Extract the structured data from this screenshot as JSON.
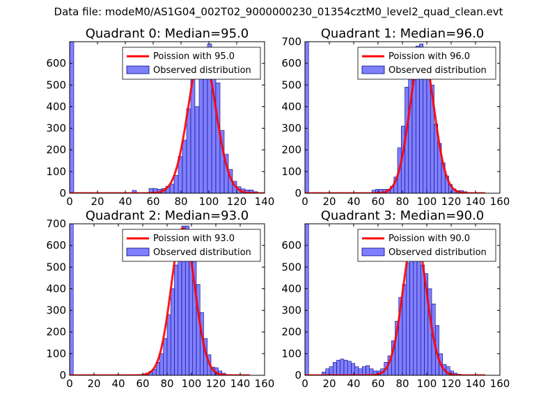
{
  "figure_title": "Data file: modeM0/AS1G04_002T02_9000000230_01354cztM0_level2_quad_clean.evt",
  "colors": {
    "histogram_fill": "#8080ff",
    "histogram_edge": "#000080",
    "poisson_line": "#ff0000"
  },
  "chart_data": [
    {
      "type": "bar",
      "title": "Quadrant 0: Median=95.0",
      "xlim": [
        0,
        140
      ],
      "ylim": [
        0,
        700
      ],
      "xticks": [
        "0",
        "20",
        "40",
        "60",
        "80",
        "100",
        "120",
        "140"
      ],
      "yticks": [
        "0",
        "100",
        "200",
        "300",
        "400",
        "500",
        "600"
      ],
      "bin_width": 3.0,
      "bins": [
        [
          0,
          700
        ],
        [
          45,
          13
        ],
        [
          57,
          22
        ],
        [
          60,
          22
        ],
        [
          63,
          18
        ],
        [
          66,
          22
        ],
        [
          69,
          32
        ],
        [
          72,
          42
        ],
        [
          75,
          82
        ],
        [
          78,
          170
        ],
        [
          81,
          245
        ],
        [
          84,
          390
        ],
        [
          87,
          560
        ],
        [
          90,
          400
        ],
        [
          93,
          640
        ],
        [
          96,
          550
        ],
        [
          99,
          690
        ],
        [
          102,
          610
        ],
        [
          105,
          510
        ],
        [
          108,
          290
        ],
        [
          111,
          180
        ],
        [
          114,
          110
        ],
        [
          117,
          55
        ],
        [
          120,
          30
        ],
        [
          123,
          20
        ],
        [
          126,
          15
        ],
        [
          129,
          15
        ],
        [
          132,
          7
        ]
      ],
      "poisson_mean": 95,
      "poisson_peak": 660,
      "legend": [
        "Poission with 95.0",
        "Observed distribution"
      ],
      "legend_position": "upper-right"
    },
    {
      "type": "bar",
      "title": "Quadrant 1: Median=96.0",
      "xlim": [
        0,
        160
      ],
      "ylim": [
        0,
        700
      ],
      "xticks": [
        "0",
        "20",
        "40",
        "60",
        "80",
        "100",
        "120",
        "140",
        "160"
      ],
      "yticks": [
        "0",
        "100",
        "200",
        "300",
        "400",
        "500",
        "600",
        "700"
      ],
      "bin_width": 3.0,
      "bins": [
        [
          0,
          700
        ],
        [
          55,
          14
        ],
        [
          58,
          18
        ],
        [
          61,
          18
        ],
        [
          64,
          18
        ],
        [
          67,
          18
        ],
        [
          70,
          32
        ],
        [
          73,
          75
        ],
        [
          76,
          210
        ],
        [
          79,
          310
        ],
        [
          82,
          490
        ],
        [
          85,
          550
        ],
        [
          88,
          640
        ],
        [
          91,
          680
        ],
        [
          94,
          690
        ],
        [
          97,
          650
        ],
        [
          100,
          600
        ],
        [
          103,
          500
        ],
        [
          106,
          320
        ],
        [
          109,
          230
        ],
        [
          112,
          140
        ],
        [
          115,
          80
        ],
        [
          118,
          40
        ],
        [
          121,
          20
        ],
        [
          124,
          12
        ],
        [
          127,
          12
        ],
        [
          130,
          7
        ]
      ],
      "poisson_mean": 96,
      "poisson_peak": 660,
      "legend": [
        "Poission with 96.0",
        "Observed distribution"
      ],
      "legend_position": "upper-right"
    },
    {
      "type": "bar",
      "title": "Quadrant 2: Median=93.0",
      "xlim": [
        0,
        160
      ],
      "ylim": [
        0,
        700
      ],
      "xticks": [
        "0",
        "20",
        "40",
        "60",
        "80",
        "100",
        "120",
        "140",
        "160"
      ],
      "yticks": [
        "0",
        "100",
        "200",
        "300",
        "400",
        "500",
        "600",
        "700"
      ],
      "bin_width": 3.0,
      "bins": [
        [
          0,
          700
        ],
        [
          62,
          10
        ],
        [
          65,
          18
        ],
        [
          68,
          28
        ],
        [
          71,
          60
        ],
        [
          74,
          100
        ],
        [
          77,
          170
        ],
        [
          80,
          280
        ],
        [
          83,
          400
        ],
        [
          86,
          510
        ],
        [
          89,
          600
        ],
        [
          92,
          690
        ],
        [
          95,
          690
        ],
        [
          98,
          610
        ],
        [
          101,
          540
        ],
        [
          104,
          420
        ],
        [
          107,
          290
        ],
        [
          110,
          170
        ],
        [
          113,
          95
        ],
        [
          116,
          38
        ],
        [
          119,
          35
        ],
        [
          122,
          20
        ],
        [
          125,
          10
        ]
      ],
      "poisson_mean": 93,
      "poisson_peak": 680,
      "legend": [
        "Poission with 93.0",
        "Observed distribution"
      ],
      "legend_position": "upper-right"
    },
    {
      "type": "bar",
      "title": "Quadrant 3: Median=90.0",
      "xlim": [
        0,
        160
      ],
      "ylim": [
        0,
        700
      ],
      "xticks": [
        "0",
        "20",
        "40",
        "60",
        "80",
        "100",
        "120",
        "140",
        "160"
      ],
      "yticks": [
        "0",
        "100",
        "200",
        "300",
        "400",
        "500",
        "600"
      ],
      "bin_width": 3.0,
      "bins": [
        [
          0,
          700
        ],
        [
          14,
          15
        ],
        [
          17,
          30
        ],
        [
          20,
          40
        ],
        [
          23,
          60
        ],
        [
          26,
          70
        ],
        [
          29,
          75
        ],
        [
          32,
          70
        ],
        [
          35,
          65
        ],
        [
          38,
          55
        ],
        [
          41,
          40
        ],
        [
          44,
          30
        ],
        [
          47,
          40
        ],
        [
          50,
          45
        ],
        [
          53,
          30
        ],
        [
          56,
          20
        ],
        [
          59,
          20
        ],
        [
          62,
          30
        ],
        [
          65,
          60
        ],
        [
          68,
          90
        ],
        [
          71,
          160
        ],
        [
          74,
          250
        ],
        [
          77,
          360
        ],
        [
          80,
          420
        ],
        [
          83,
          520
        ],
        [
          86,
          590
        ],
        [
          89,
          660
        ],
        [
          92,
          640
        ],
        [
          95,
          510
        ],
        [
          98,
          470
        ],
        [
          101,
          400
        ],
        [
          104,
          330
        ],
        [
          107,
          230
        ],
        [
          110,
          100
        ],
        [
          113,
          50
        ],
        [
          116,
          40
        ],
        [
          119,
          20
        ],
        [
          122,
          10
        ],
        [
          125,
          5
        ]
      ],
      "poisson_mean": 90,
      "poisson_peak": 660,
      "legend": [
        "Poission with 90.0",
        "Observed distribution"
      ],
      "legend_position": "upper-right"
    }
  ]
}
